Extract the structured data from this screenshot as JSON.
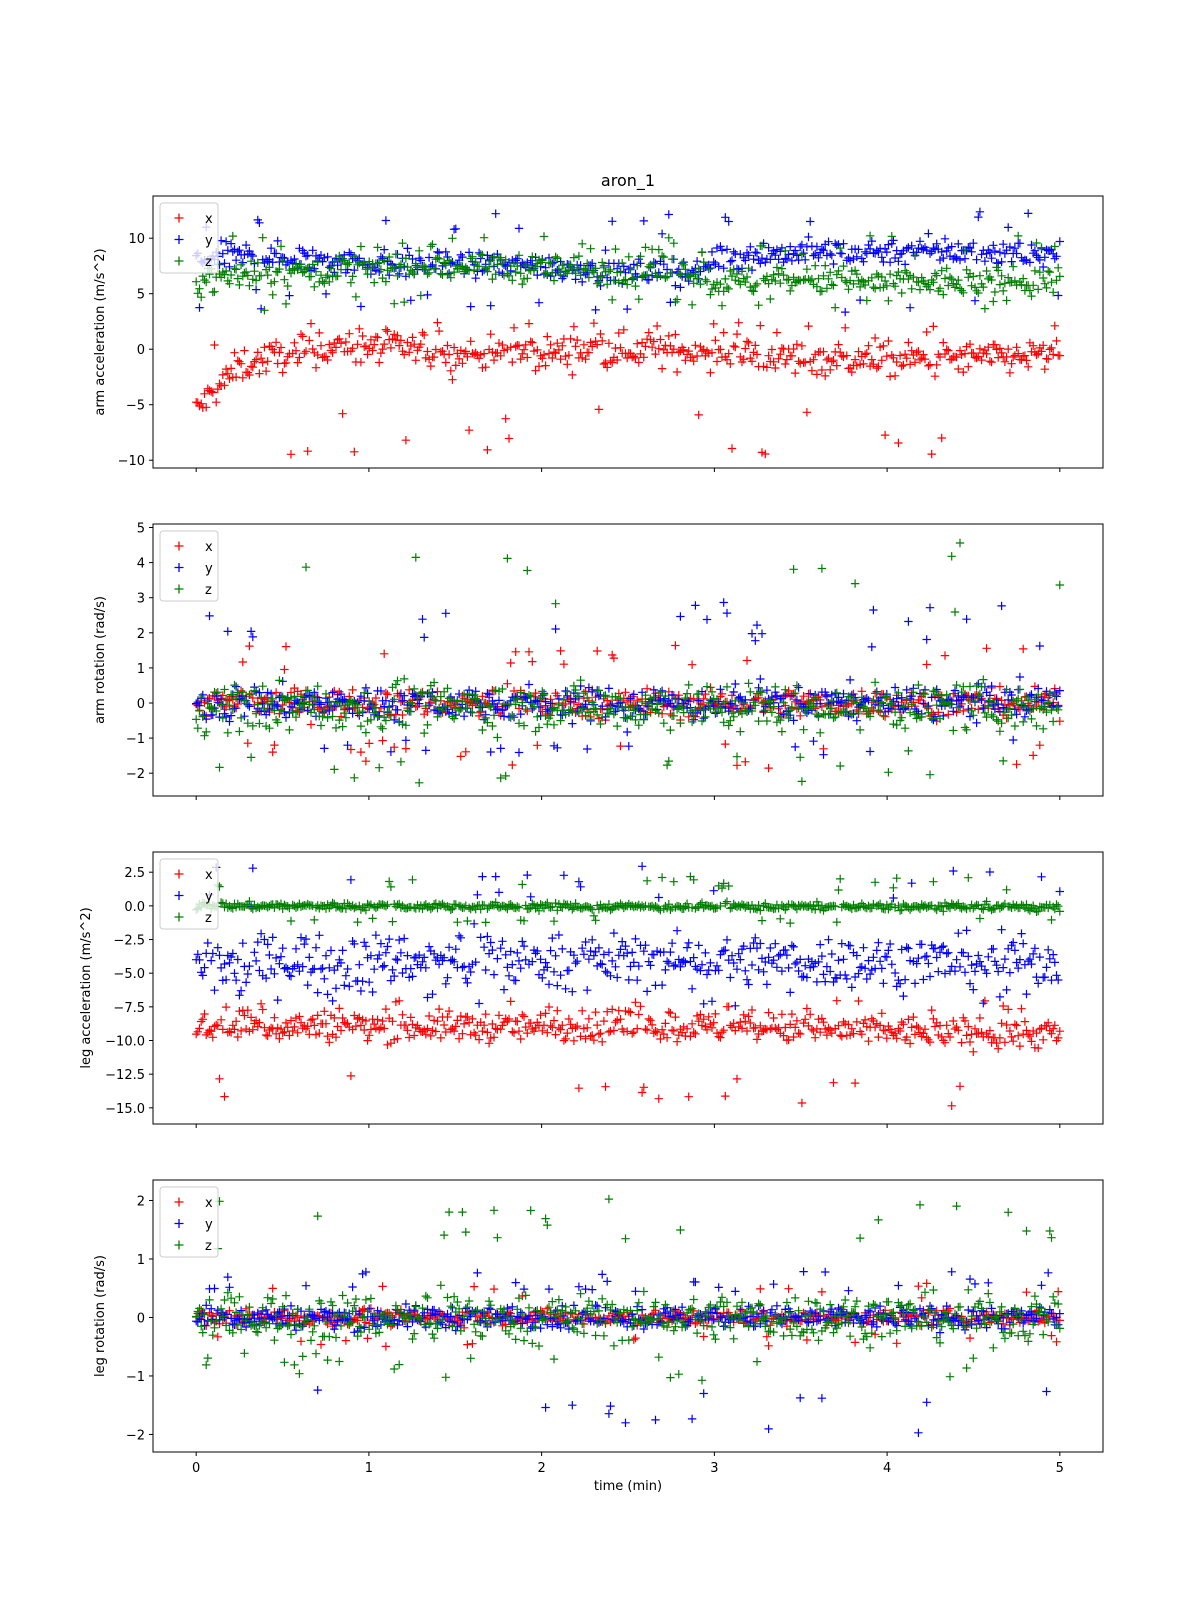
{
  "figure_title": "aron_1",
  "colors": {
    "x": "#ff0000",
    "y": "#0000ff",
    "z": "#007f00"
  },
  "xlabel": "time (min)",
  "xlim": [
    -0.25,
    5.25
  ],
  "xticks": [
    0,
    1,
    2,
    3,
    4,
    5
  ],
  "xtick_labels": [
    "0",
    "1",
    "2",
    "3",
    "4",
    "5"
  ],
  "marker": "+",
  "legend_labels": [
    "x",
    "y",
    "z"
  ],
  "chart_data": [
    {
      "type": "scatter",
      "title": "aron_1",
      "ylabel": "arm acceleration (m/s^2)",
      "ylim": [
        -10.7,
        13.8
      ],
      "yticks": [
        -10,
        -5,
        0,
        5,
        10
      ],
      "ytick_labels": [
        "−10",
        "−5",
        "0",
        "5",
        "10"
      ],
      "legend": "upper-left",
      "series": [
        {
          "name": "x",
          "key": "x",
          "x": [
            0,
            0.25,
            0.5,
            1.0,
            1.5,
            2.0,
            2.5,
            3.0,
            3.5,
            4.0,
            4.5,
            5.0
          ],
          "y": [
            -5.5,
            -1.5,
            -0.5,
            0.3,
            -0.5,
            -0.3,
            0,
            -0.3,
            -0.8,
            -1.0,
            -0.8,
            -0.5
          ],
          "spread": 1.3,
          "outlier_low": -9.5,
          "outlier_high": 2.5
        },
        {
          "name": "y",
          "key": "y",
          "x": [
            0,
            0.25,
            0.5,
            1.0,
            1.5,
            2.0,
            2.5,
            2.9,
            3.0,
            3.5,
            4.0,
            4.5,
            5.0
          ],
          "y": [
            8.0,
            8.5,
            8.2,
            7.8,
            7.5,
            7.5,
            7.0,
            7.0,
            8.3,
            8.7,
            8.9,
            8.8,
            8.5
          ],
          "spread": 1.1,
          "outlier_low": 3.0,
          "outlier_high": 12.4
        },
        {
          "name": "z",
          "key": "z",
          "x": [
            0,
            0.25,
            0.5,
            1.0,
            1.5,
            2.0,
            2.5,
            2.9,
            3.0,
            3.5,
            4.0,
            4.5,
            5.0
          ],
          "y": [
            6.3,
            6.8,
            7.0,
            7.2,
            7.5,
            7.3,
            7.0,
            7.0,
            6.0,
            6.3,
            6.0,
            6.0,
            6.3
          ],
          "spread": 1.2,
          "outlier_low": 3.5,
          "outlier_high": 10.3
        }
      ]
    },
    {
      "type": "scatter",
      "title": "",
      "ylabel": "arm rotation (rad/s)",
      "ylim": [
        -2.65,
        5.1
      ],
      "yticks": [
        -2,
        -1,
        0,
        1,
        2,
        3,
        4,
        5
      ],
      "ytick_labels": [
        "−2",
        "−1",
        "0",
        "1",
        "2",
        "3",
        "4",
        "5"
      ],
      "legend": "upper-left",
      "series": [
        {
          "name": "x",
          "key": "x",
          "x": [
            0,
            5.0
          ],
          "y": [
            0,
            0
          ],
          "spread": 0.35,
          "outlier_low": -1.9,
          "outlier_high": 1.7
        },
        {
          "name": "y",
          "key": "y",
          "x": [
            0,
            5.0
          ],
          "y": [
            0,
            0
          ],
          "spread": 0.45,
          "outlier_low": -1.5,
          "outlier_high": 2.9
        },
        {
          "name": "z",
          "key": "z",
          "x": [
            0,
            5.0
          ],
          "y": [
            -0.1,
            -0.1
          ],
          "spread": 0.6,
          "outlier_low": -2.3,
          "outlier_high": 4.7
        }
      ]
    },
    {
      "type": "scatter",
      "title": "",
      "ylabel": "leg acceleration (m/s^2)",
      "ylim": [
        -16.2,
        4.0
      ],
      "yticks": [
        -15.0,
        -12.5,
        -10.0,
        -7.5,
        -5.0,
        -2.5,
        0.0,
        2.5
      ],
      "ytick_labels": [
        "−15.0",
        "−12.5",
        "−10.0",
        "−7.5",
        "−5.0",
        "−2.5",
        "0.0",
        "2.5"
      ],
      "legend": "upper-left",
      "series": [
        {
          "name": "x",
          "key": "x",
          "x": [
            0,
            1.0,
            2.0,
            3.0,
            4.0,
            5.0
          ],
          "y": [
            -9.0,
            -8.9,
            -9.0,
            -9.0,
            -9.3,
            -9.5
          ],
          "spread": 1.0,
          "outlier_low": -15.2,
          "outlier_high": -7.0
        },
        {
          "name": "y",
          "key": "y",
          "x": [
            0,
            0.5,
            1.0,
            2.0,
            3.0,
            4.0,
            5.0
          ],
          "y": [
            -4.5,
            -4.0,
            -4.0,
            -4.0,
            -4.0,
            -4.2,
            -4.0
          ],
          "spread": 1.7,
          "outlier_low": -7.5,
          "outlier_high": 3.2
        },
        {
          "name": "z",
          "key": "z",
          "x": [
            0,
            5.0
          ],
          "y": [
            0.0,
            -0.1
          ],
          "spread": 0.25,
          "outlier_low": -1.3,
          "outlier_high": 2.2
        }
      ]
    },
    {
      "type": "scatter",
      "title": "",
      "ylabel": "leg rotation (rad/s)",
      "ylim": [
        -2.3,
        2.35
      ],
      "yticks": [
        -2,
        -1,
        0,
        1,
        2
      ],
      "ytick_labels": [
        "−2",
        "−1",
        "0",
        "1",
        "2"
      ],
      "legend": "upper-left",
      "series": [
        {
          "name": "x",
          "key": "x",
          "x": [
            0,
            5.0
          ],
          "y": [
            0,
            0
          ],
          "spread": 0.12,
          "outlier_low": -0.5,
          "outlier_high": 0.6
        },
        {
          "name": "y",
          "key": "y",
          "x": [
            0,
            5.0
          ],
          "y": [
            0,
            0
          ],
          "spread": 0.18,
          "outlier_low": -2.1,
          "outlier_high": 0.8
        },
        {
          "name": "z",
          "key": "z",
          "x": [
            0,
            5.0
          ],
          "y": [
            0,
            0
          ],
          "spread": 0.35,
          "outlier_low": -1.1,
          "outlier_high": 2.1
        }
      ]
    }
  ]
}
